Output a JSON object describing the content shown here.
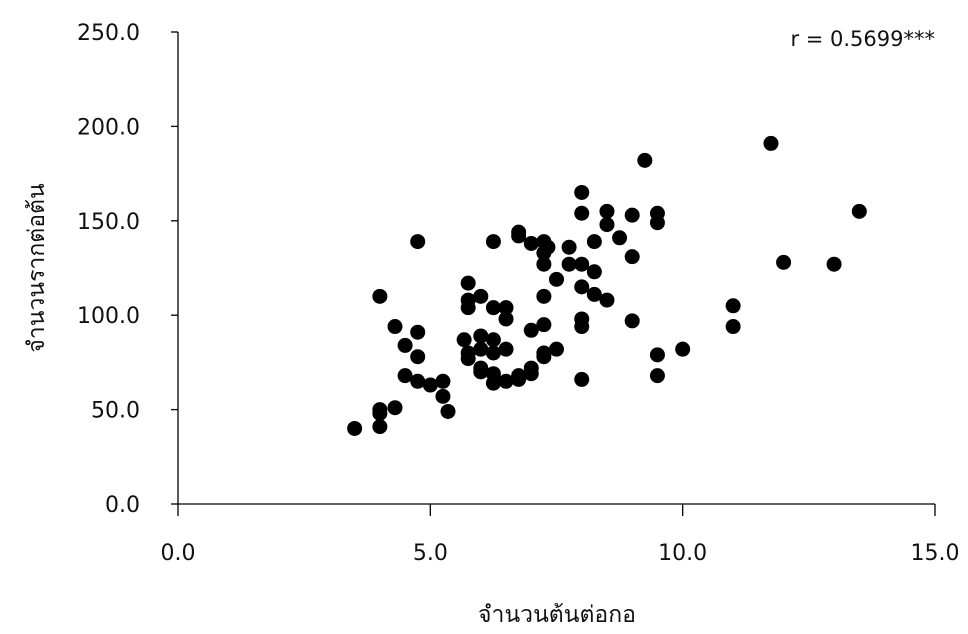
{
  "chart_data": {
    "type": "scatter",
    "xlabel": "จำนวนต้นต่อกอ",
    "ylabel": "จำนวนรากต่อต้น",
    "annotation": "r = 0.5699***",
    "xlim": [
      0,
      15
    ],
    "ylim": [
      0,
      250
    ],
    "x_ticks": [
      "0.0",
      "5.0",
      "10.0",
      "15.0"
    ],
    "y_ticks": [
      "0.0",
      "50.0",
      "100.0",
      "150.0",
      "200.0",
      "250.0"
    ],
    "grid": false,
    "marker_color": "#000000",
    "points": [
      {
        "x": 3.5,
        "y": 40
      },
      {
        "x": 4.0,
        "y": 41
      },
      {
        "x": 4.0,
        "y": 48
      },
      {
        "x": 4.0,
        "y": 50
      },
      {
        "x": 4.0,
        "y": 110
      },
      {
        "x": 4.3,
        "y": 51
      },
      {
        "x": 4.3,
        "y": 94
      },
      {
        "x": 4.5,
        "y": 68
      },
      {
        "x": 4.5,
        "y": 84
      },
      {
        "x": 4.75,
        "y": 65
      },
      {
        "x": 4.75,
        "y": 78
      },
      {
        "x": 4.75,
        "y": 91
      },
      {
        "x": 4.75,
        "y": 139
      },
      {
        "x": 5.0,
        "y": 63
      },
      {
        "x": 5.25,
        "y": 57
      },
      {
        "x": 5.25,
        "y": 65
      },
      {
        "x": 5.35,
        "y": 49
      },
      {
        "x": 5.67,
        "y": 87
      },
      {
        "x": 5.75,
        "y": 77
      },
      {
        "x": 5.75,
        "y": 80
      },
      {
        "x": 5.75,
        "y": 104
      },
      {
        "x": 5.75,
        "y": 108
      },
      {
        "x": 5.75,
        "y": 117
      },
      {
        "x": 6.0,
        "y": 70
      },
      {
        "x": 6.0,
        "y": 72
      },
      {
        "x": 6.0,
        "y": 82
      },
      {
        "x": 6.0,
        "y": 89
      },
      {
        "x": 6.0,
        "y": 110
      },
      {
        "x": 6.25,
        "y": 64
      },
      {
        "x": 6.25,
        "y": 69
      },
      {
        "x": 6.25,
        "y": 80
      },
      {
        "x": 6.25,
        "y": 87
      },
      {
        "x": 6.25,
        "y": 104
      },
      {
        "x": 6.25,
        "y": 139
      },
      {
        "x": 6.5,
        "y": 65
      },
      {
        "x": 6.5,
        "y": 82
      },
      {
        "x": 6.5,
        "y": 98
      },
      {
        "x": 6.5,
        "y": 104
      },
      {
        "x": 6.75,
        "y": 66
      },
      {
        "x": 6.75,
        "y": 68
      },
      {
        "x": 6.75,
        "y": 142
      },
      {
        "x": 6.75,
        "y": 144
      },
      {
        "x": 7.0,
        "y": 69
      },
      {
        "x": 7.0,
        "y": 72
      },
      {
        "x": 7.0,
        "y": 92
      },
      {
        "x": 7.0,
        "y": 138
      },
      {
        "x": 7.25,
        "y": 78
      },
      {
        "x": 7.25,
        "y": 80
      },
      {
        "x": 7.25,
        "y": 95
      },
      {
        "x": 7.25,
        "y": 110
      },
      {
        "x": 7.25,
        "y": 127
      },
      {
        "x": 7.25,
        "y": 133
      },
      {
        "x": 7.25,
        "y": 139
      },
      {
        "x": 7.33,
        "y": 136
      },
      {
        "x": 7.5,
        "y": 82
      },
      {
        "x": 7.5,
        "y": 119
      },
      {
        "x": 7.75,
        "y": 127
      },
      {
        "x": 7.75,
        "y": 136
      },
      {
        "x": 8.0,
        "y": 66
      },
      {
        "x": 8.0,
        "y": 94
      },
      {
        "x": 8.0,
        "y": 98
      },
      {
        "x": 8.0,
        "y": 115
      },
      {
        "x": 8.0,
        "y": 127
      },
      {
        "x": 8.0,
        "y": 154
      },
      {
        "x": 8.0,
        "y": 165
      },
      {
        "x": 8.25,
        "y": 111
      },
      {
        "x": 8.25,
        "y": 123
      },
      {
        "x": 8.25,
        "y": 139
      },
      {
        "x": 8.5,
        "y": 108
      },
      {
        "x": 8.5,
        "y": 148
      },
      {
        "x": 8.5,
        "y": 155
      },
      {
        "x": 8.75,
        "y": 141
      },
      {
        "x": 9.0,
        "y": 97
      },
      {
        "x": 9.0,
        "y": 131
      },
      {
        "x": 9.0,
        "y": 153
      },
      {
        "x": 9.25,
        "y": 182
      },
      {
        "x": 9.5,
        "y": 68
      },
      {
        "x": 9.5,
        "y": 79
      },
      {
        "x": 9.5,
        "y": 149
      },
      {
        "x": 9.5,
        "y": 154
      },
      {
        "x": 10.0,
        "y": 82
      },
      {
        "x": 11.0,
        "y": 94
      },
      {
        "x": 11.0,
        "y": 105
      },
      {
        "x": 11.75,
        "y": 191
      },
      {
        "x": 12.0,
        "y": 128
      },
      {
        "x": 13.0,
        "y": 127
      },
      {
        "x": 13.5,
        "y": 155
      }
    ]
  }
}
